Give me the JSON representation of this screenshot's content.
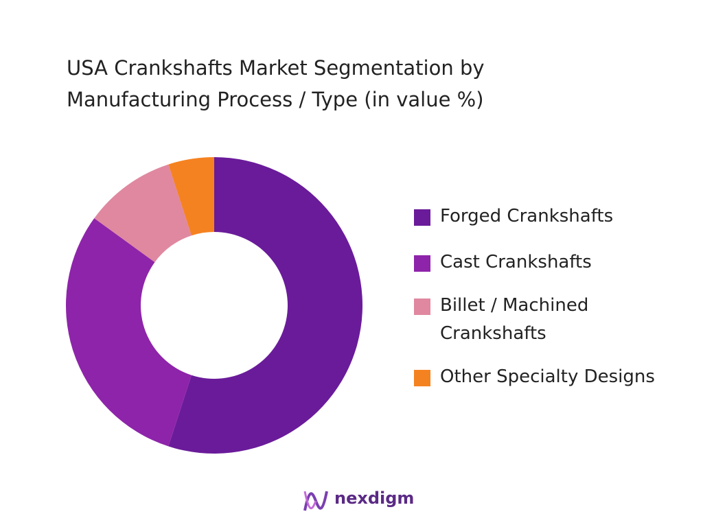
{
  "chart_data": {
    "type": "donut",
    "title": "USA Crankshafts Market Segmentation by Manufacturing Process / Type (in value %)",
    "categories": [
      "Forged Crankshafts",
      "Cast Crankshafts",
      "Billet / Machined Crankshafts",
      "Other Specialty Designs"
    ],
    "values": [
      55,
      30,
      10,
      5
    ],
    "colors": [
      "#6a1b9a",
      "#8e24aa",
      "#e088a0",
      "#f58220"
    ],
    "legend": "right"
  },
  "brand": "nexdigm"
}
